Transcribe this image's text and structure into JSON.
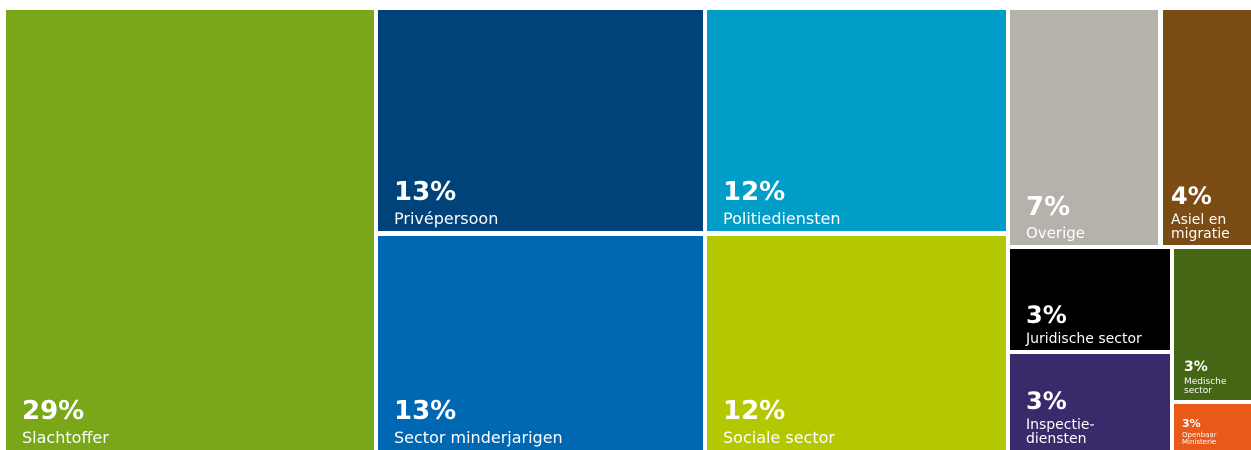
{
  "chart_data": {
    "type": "treemap",
    "categories": [
      "Slachtoffer",
      "Privépersoon",
      "Sector minderjarigen",
      "Politiediensten",
      "Sociale sector",
      "Overige",
      "Asiel en migratie",
      "Juridische sector",
      "Inspectie-\ndiensten",
      "Medische sector",
      "Openbaar Ministerie"
    ],
    "values": [
      29,
      13,
      13,
      12,
      12,
      7,
      4,
      3,
      3,
      3,
      3
    ],
    "value_labels": [
      "29%",
      "13%",
      "13%",
      "12%",
      "12%",
      "7%",
      "4%",
      "3%",
      "3%",
      "3%",
      "3%"
    ],
    "colors": [
      "#7aa61a",
      "#00427a",
      "#0068b3",
      "#009dc8",
      "#b3c800",
      "#b5b2ab",
      "#7b4c14",
      "#000000",
      "#3b2a6b",
      "#456614",
      "#e8591a"
    ]
  }
}
